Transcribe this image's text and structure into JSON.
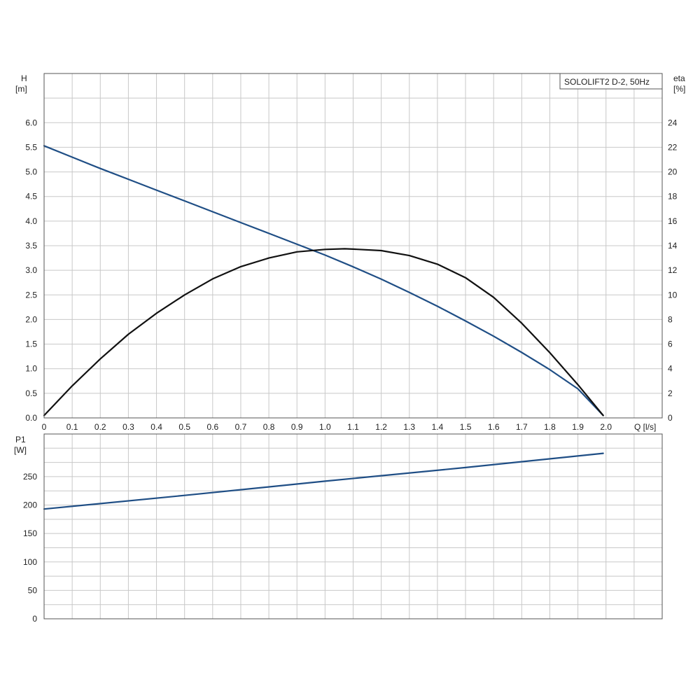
{
  "chart_data": [
    {
      "type": "line",
      "title": "SOLOLIFT2 D-2, 50Hz",
      "xlabel": "Q [l/s]",
      "x_ticks": [
        "0",
        "0.1",
        "0.2",
        "0.3",
        "0.4",
        "0.5",
        "0.6",
        "0.7",
        "0.8",
        "0.9",
        "1.0",
        "1.1",
        "1.2",
        "1.3",
        "1.4",
        "1.5",
        "1.6",
        "1.7",
        "1.8",
        "1.9",
        "2.0"
      ],
      "xlim": [
        0,
        2.2
      ],
      "y_left": {
        "label": "H",
        "unit": "[m]",
        "ticks": [
          "0.0",
          "0.5",
          "1.0",
          "1.5",
          "2.0",
          "2.5",
          "3.0",
          "3.5",
          "4.0",
          "4.5",
          "5.0",
          "5.5",
          "6.0"
        ],
        "ylim": [
          0,
          7
        ]
      },
      "y_right": {
        "label": "eta",
        "unit": "[%]",
        "ticks": [
          "0",
          "2",
          "4",
          "6",
          "8",
          "10",
          "12",
          "14",
          "16",
          "18",
          "20",
          "22",
          "24"
        ],
        "ylim": [
          0,
          28
        ]
      },
      "grid": true,
      "legend": "top-right box with title",
      "series": [
        {
          "axis": "left",
          "color": "#1f4e85",
          "x": [
            0,
            0.1,
            0.2,
            0.3,
            0.4,
            0.5,
            0.6,
            0.7,
            0.8,
            0.9,
            1.0,
            1.1,
            1.2,
            1.3,
            1.4,
            1.5,
            1.6,
            1.7,
            1.8,
            1.9,
            1.99
          ],
          "y": [
            5.53,
            5.3,
            5.07,
            4.85,
            4.63,
            4.41,
            4.19,
            3.97,
            3.75,
            3.53,
            3.31,
            3.07,
            2.82,
            2.55,
            2.27,
            1.97,
            1.66,
            1.33,
            0.98,
            0.59,
            0.05
          ]
        },
        {
          "axis": "right",
          "color": "#111111",
          "x": [
            0,
            0.1,
            0.2,
            0.3,
            0.4,
            0.5,
            0.6,
            0.7,
            0.8,
            0.9,
            1.0,
            1.07,
            1.1,
            1.2,
            1.3,
            1.4,
            1.5,
            1.6,
            1.7,
            1.8,
            1.9,
            1.99
          ],
          "y": [
            0.2,
            2.6,
            4.8,
            6.8,
            8.5,
            10.0,
            11.3,
            12.3,
            13.0,
            13.5,
            13.7,
            13.75,
            13.72,
            13.6,
            13.2,
            12.5,
            11.4,
            9.8,
            7.7,
            5.3,
            2.7,
            0.2
          ]
        }
      ]
    },
    {
      "type": "line",
      "xlabel": "",
      "x_ticks": [],
      "xlim": [
        0,
        2.2
      ],
      "y_left": {
        "label": "P1",
        "unit": "[W]",
        "ticks": [
          "0",
          "50",
          "100",
          "150",
          "200",
          "250"
        ],
        "ylim": [
          0,
          325
        ]
      },
      "grid": true,
      "series": [
        {
          "axis": "left",
          "color": "#1f4e85",
          "x": [
            0,
            0.5,
            1.0,
            1.5,
            1.99
          ],
          "y": [
            193,
            217,
            242,
            266,
            291
          ]
        }
      ]
    }
  ]
}
